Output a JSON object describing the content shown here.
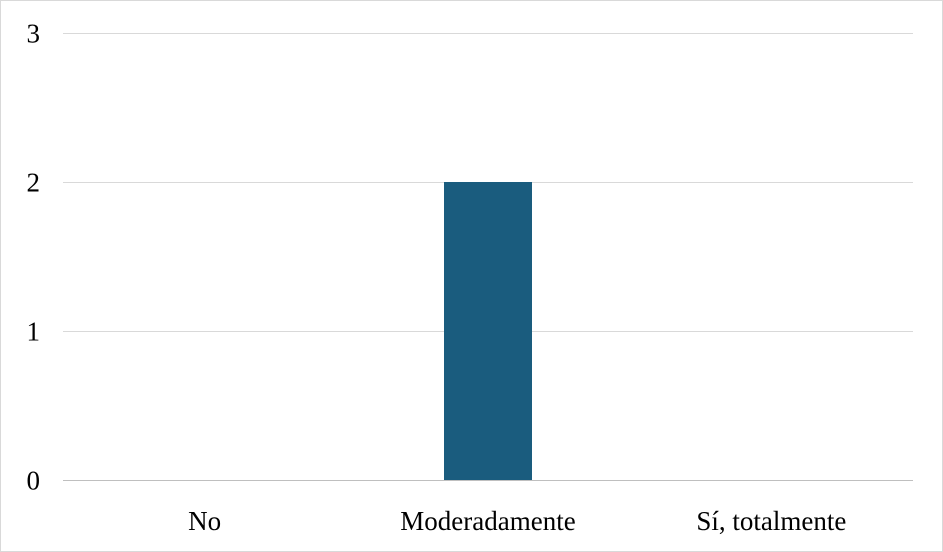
{
  "chart_data": {
    "type": "bar",
    "title": "",
    "xlabel": "",
    "ylabel": "",
    "categories": [
      "No",
      "Moderadamente",
      "Sí, totalmente"
    ],
    "values": [
      0,
      2,
      0
    ],
    "ylim": [
      0,
      3
    ],
    "yticks": [
      "0",
      "1",
      "2",
      "3"
    ],
    "grid": true,
    "legend": "none",
    "bar_color": "#1a5c7e",
    "grid_color": "#d9d9d9"
  }
}
